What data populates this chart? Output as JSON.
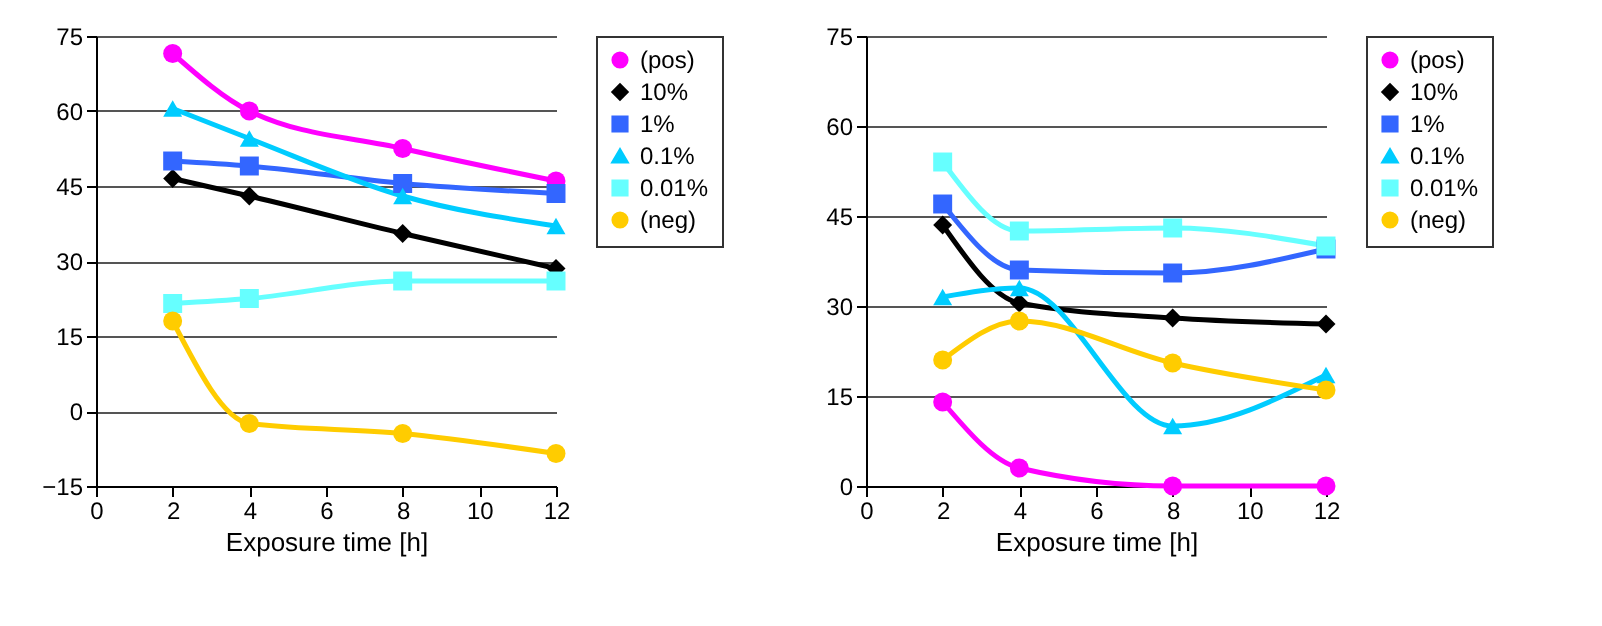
{
  "chart_data": [
    {
      "type": "line",
      "xlabel": "Exposure time [h]",
      "x": [
        2,
        4,
        8,
        12
      ],
      "xlim": [
        0,
        12
      ],
      "xticks": [
        0,
        2,
        4,
        6,
        8,
        10,
        12
      ],
      "ylim": [
        -15,
        75
      ],
      "yticks": [
        -15,
        0,
        15,
        30,
        45,
        60,
        75
      ],
      "grid": "y",
      "legend": "right",
      "series": [
        {
          "name": "(pos)",
          "color": "#ff00ff",
          "marker": "circle",
          "values": [
            71.5,
            60,
            52.5,
            46
          ]
        },
        {
          "name": "10%",
          "color": "#000000",
          "marker": "diamond",
          "values": [
            46.5,
            43,
            35.5,
            28.5
          ]
        },
        {
          "name": "1%",
          "color": "#3366ff",
          "marker": "square",
          "values": [
            50,
            49,
            45.5,
            43.5
          ]
        },
        {
          "name": "0.1%",
          "color": "#00ccff",
          "marker": "triangle",
          "values": [
            60.5,
            54.5,
            43,
            37
          ]
        },
        {
          "name": "0.01%",
          "color": "#66ffff",
          "marker": "square",
          "values": [
            21.5,
            22.5,
            26,
            26
          ]
        },
        {
          "name": "(neg)",
          "color": "#ffcc00",
          "marker": "circle",
          "values": [
            18,
            -2.5,
            -4.5,
            -8.5
          ]
        }
      ]
    },
    {
      "type": "line",
      "xlabel": "Exposure time [h]",
      "x": [
        2,
        4,
        8,
        12
      ],
      "xlim": [
        0,
        12
      ],
      "xticks": [
        0,
        2,
        4,
        6,
        8,
        10,
        12
      ],
      "ylim": [
        0,
        75
      ],
      "yticks": [
        0,
        15,
        30,
        45,
        60,
        75
      ],
      "grid": "y",
      "legend": "right",
      "series": [
        {
          "name": "(pos)",
          "color": "#ff00ff",
          "marker": "circle",
          "values": [
            14,
            3,
            0,
            0
          ]
        },
        {
          "name": "10%",
          "color": "#000000",
          "marker": "diamond",
          "values": [
            43.5,
            30.5,
            28,
            27
          ]
        },
        {
          "name": "1%",
          "color": "#3366ff",
          "marker": "square",
          "values": [
            47,
            36,
            35.5,
            39.5
          ]
        },
        {
          "name": "0.1%",
          "color": "#00ccff",
          "marker": "triangle",
          "values": [
            31.5,
            33,
            10,
            18.5
          ]
        },
        {
          "name": "0.01%",
          "color": "#66ffff",
          "marker": "square",
          "values": [
            54,
            42.5,
            43,
            40
          ]
        },
        {
          "name": "(neg)",
          "color": "#ffcc00",
          "marker": "circle",
          "values": [
            21,
            27.5,
            20.5,
            16
          ]
        }
      ]
    }
  ]
}
